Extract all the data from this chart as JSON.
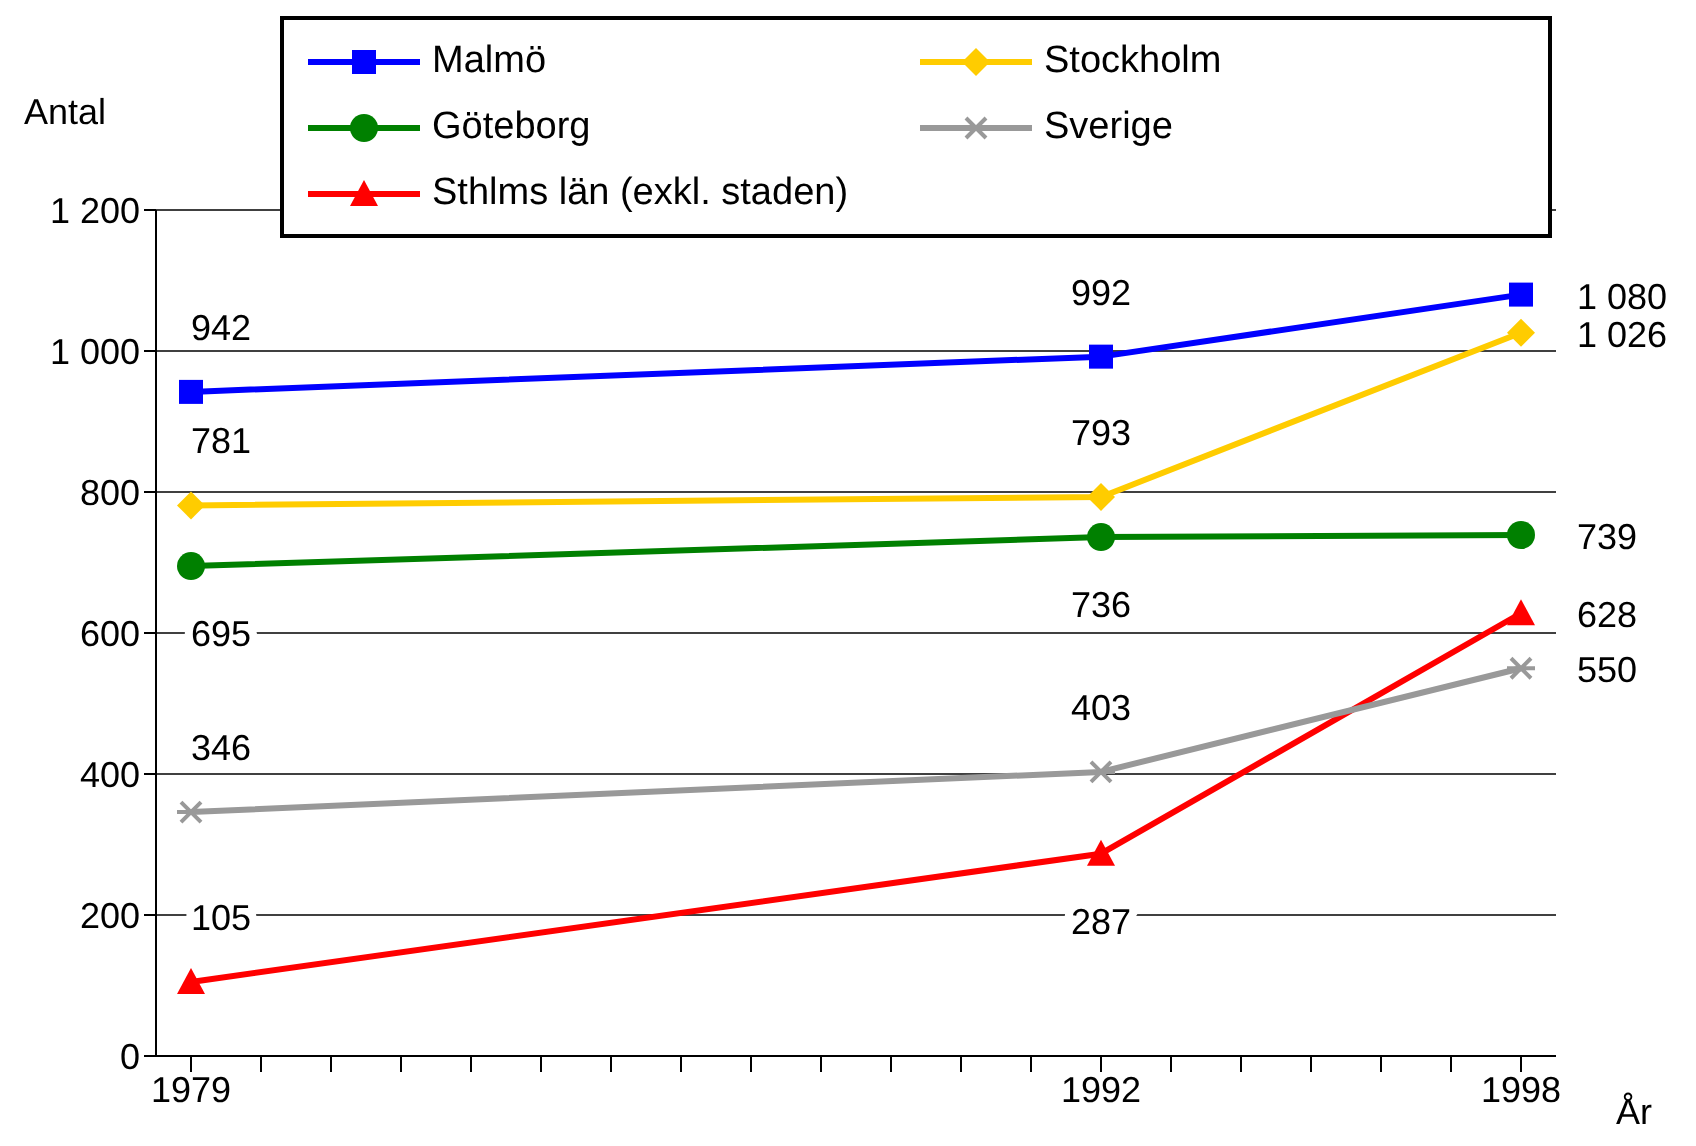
{
  "chart_data": {
    "type": "line",
    "xlabel": "År",
    "ylabel": "Antal",
    "x": [
      1979,
      1992,
      1998
    ],
    "series": [
      {
        "name": "Malmö",
        "color": "#0000ff",
        "marker": "square",
        "values": [
          942,
          992,
          1080
        ],
        "value_labels": [
          "942",
          "992",
          "1 080"
        ]
      },
      {
        "name": "Göteborg",
        "color": "#008000",
        "marker": "circle",
        "values": [
          695,
          736,
          739
        ],
        "value_labels": [
          "695",
          "736",
          "739"
        ]
      },
      {
        "name": "Sthlms län (exkl.  staden)",
        "color": "#ff0000",
        "marker": "triangle",
        "values": [
          105,
          287,
          628
        ],
        "value_labels": [
          "105",
          "287",
          "628"
        ]
      },
      {
        "name": "Stockholm",
        "color": "#ffcc00",
        "marker": "diamond",
        "values": [
          781,
          793,
          1026
        ],
        "value_labels": [
          "781",
          "793",
          "1 026"
        ]
      },
      {
        "name": "Sverige",
        "color": "#999999",
        "marker": "cross",
        "values": [
          346,
          403,
          550
        ],
        "value_labels": [
          "346",
          "403",
          "550"
        ]
      }
    ],
    "xlim": [
      1978.5,
      1998.5
    ],
    "xticks": [
      1979,
      {
        "value": 1980,
        "label": null
      },
      {
        "value": 1981,
        "label": null
      },
      {
        "value": 1982,
        "label": null
      },
      {
        "value": 1983,
        "label": null
      },
      {
        "value": 1984,
        "label": null
      },
      {
        "value": 1985,
        "label": null
      },
      {
        "value": 1986,
        "label": null
      },
      {
        "value": 1987,
        "label": null
      },
      {
        "value": 1988,
        "label": null
      },
      {
        "value": 1989,
        "label": null
      },
      {
        "value": 1990,
        "label": null
      },
      {
        "value": 1991,
        "label": null
      },
      1992,
      {
        "value": 1993,
        "label": null
      },
      {
        "value": 1994,
        "label": null
      },
      {
        "value": 1995,
        "label": null
      },
      {
        "value": 1996,
        "label": null
      },
      {
        "value": 1997,
        "label": null
      },
      1998
    ],
    "ylim": [
      0,
      1200
    ],
    "yticks": [
      0,
      200,
      400,
      600,
      800,
      {
        "value": 1000,
        "label": "1 000"
      },
      {
        "value": 1200,
        "label": "1 200"
      }
    ],
    "grid": "y",
    "legend": "top",
    "line_style": "solid"
  }
}
